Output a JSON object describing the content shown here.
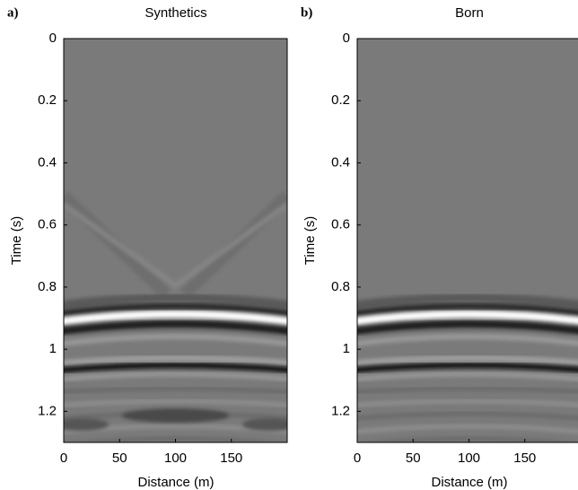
{
  "chart_data": [
    {
      "type": "image",
      "panel_label": "a)",
      "title": "Synthetics",
      "xlabel": "Distance (m)",
      "ylabel": "Time (s)",
      "xlim": [
        0,
        200
      ],
      "ylim": [
        0,
        1.3
      ],
      "y_inverted": true,
      "xticks": [
        0,
        50,
        100,
        150
      ],
      "yticks": [
        0,
        0.2,
        0.4,
        0.6,
        0.8,
        1,
        1.2
      ]
    },
    {
      "type": "image",
      "panel_label": "b)",
      "title": "Born",
      "xlabel": "Distance (m)",
      "ylabel": "Time (s)",
      "xlim": [
        0,
        200
      ],
      "ylim": [
        0,
        1.3
      ],
      "y_inverted": true,
      "xticks": [
        0,
        50,
        100,
        150
      ],
      "yticks": [
        0,
        0.2,
        0.4,
        0.6,
        0.8,
        1,
        1.2
      ]
    }
  ]
}
